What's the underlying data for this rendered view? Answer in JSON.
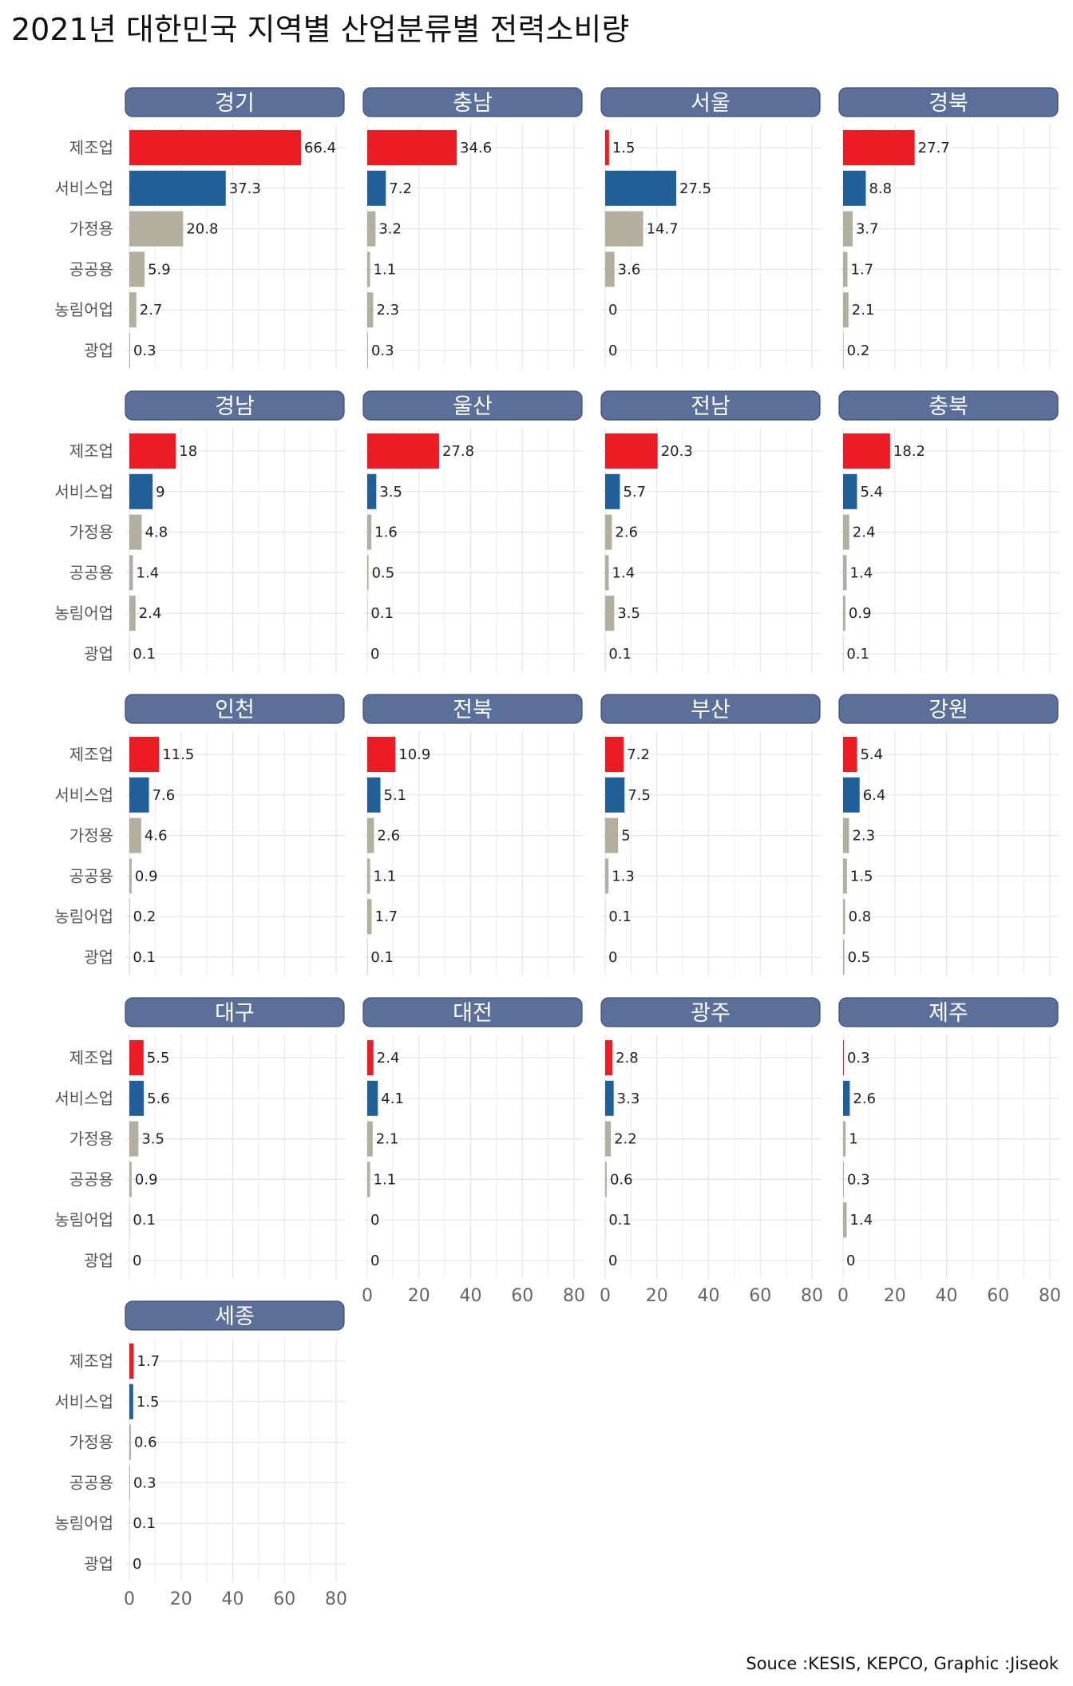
{
  "chart_data": {
    "type": "bar",
    "orientation": "horizontal",
    "title": "2021년 대한민국 지역별 산업분류별 전력소비량",
    "caption": "Souce :KESIS, KEPCO, Graphic :Jiseok",
    "categories": [
      "제조업",
      "서비스업",
      "가정용",
      "공공용",
      "농림어업",
      "광업"
    ],
    "xlim": [
      0,
      80
    ],
    "x_ticks": [
      0,
      20,
      40,
      60,
      80
    ],
    "grid": true,
    "colors": {
      "제조업": "#ED1C24",
      "서비스업": "#215F98",
      "other": "#B3AF9E",
      "strip": "#5B6F9B"
    },
    "panels": [
      {
        "region": "경기",
        "values": [
          66.4,
          37.3,
          20.8,
          5.9,
          2.7,
          0.3
        ]
      },
      {
        "region": "충남",
        "values": [
          34.6,
          7.2,
          3.2,
          1.1,
          2.3,
          0.3
        ]
      },
      {
        "region": "서울",
        "values": [
          1.5,
          27.5,
          14.7,
          3.6,
          0,
          0
        ]
      },
      {
        "region": "경북",
        "values": [
          27.7,
          8.8,
          3.7,
          1.7,
          2.1,
          0.2
        ]
      },
      {
        "region": "경남",
        "values": [
          18,
          9,
          4.8,
          1.4,
          2.4,
          0.1
        ]
      },
      {
        "region": "울산",
        "values": [
          27.8,
          3.5,
          1.6,
          0.5,
          0.1,
          0
        ]
      },
      {
        "region": "전남",
        "values": [
          20.3,
          5.7,
          2.6,
          1.4,
          3.5,
          0.1
        ]
      },
      {
        "region": "충북",
        "values": [
          18.2,
          5.4,
          2.4,
          1.4,
          0.9,
          0.1
        ]
      },
      {
        "region": "인천",
        "values": [
          11.5,
          7.6,
          4.6,
          0.9,
          0.2,
          0.1
        ]
      },
      {
        "region": "전북",
        "values": [
          10.9,
          5.1,
          2.6,
          1.1,
          1.7,
          0.1
        ]
      },
      {
        "region": "부산",
        "values": [
          7.2,
          7.5,
          5,
          1.3,
          0.1,
          0
        ]
      },
      {
        "region": "강원",
        "values": [
          5.4,
          6.4,
          2.3,
          1.5,
          0.8,
          0.5
        ]
      },
      {
        "region": "대구",
        "values": [
          5.5,
          5.6,
          3.5,
          0.9,
          0.1,
          0
        ]
      },
      {
        "region": "대전",
        "values": [
          2.4,
          4.1,
          2.1,
          1.1,
          0,
          0
        ]
      },
      {
        "region": "광주",
        "values": [
          2.8,
          3.3,
          2.2,
          0.6,
          0.1,
          0
        ]
      },
      {
        "region": "제주",
        "values": [
          0.3,
          2.6,
          1,
          0.3,
          1.4,
          0
        ]
      },
      {
        "region": "세종",
        "values": [
          1.7,
          1.5,
          0.6,
          0.3,
          0.1,
          0
        ]
      }
    ]
  }
}
